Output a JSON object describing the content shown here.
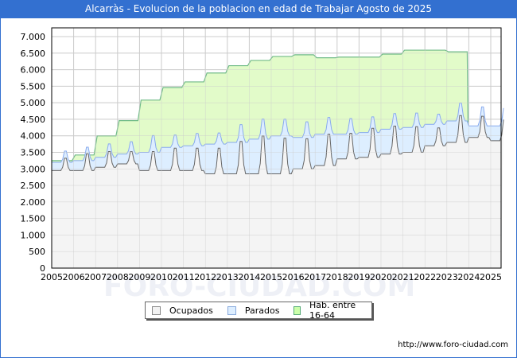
{
  "header": {
    "title": "Alcarràs - Evolucion de la poblacion en edad de Trabajar Agosto de 2025"
  },
  "footer": {
    "url": "http://www.foro-ciudad.com"
  },
  "watermark": "FORO-CIUDAD.COM",
  "legend": {
    "items": [
      {
        "label": "Ocupados",
        "color": "#f2f2f2",
        "border": "#888888"
      },
      {
        "label": "Parados",
        "color": "#ddeeff",
        "border": "#88aadd"
      },
      {
        "label": "Hab. entre 16-64",
        "color": "#ccffaa",
        "border": "#55aa77"
      }
    ]
  },
  "colors": {
    "title_bg": "#3370d0",
    "hab_fill": "#e2fbc9",
    "hab_line": "#70bb88",
    "parados_fill": "#ddeeff",
    "parados_line": "#88aaee",
    "ocupados_fill": "#f4f4f4",
    "ocupados_line": "#666666",
    "grid": "#cccccc"
  },
  "chart_data": {
    "type": "area",
    "title": "Alcarràs - Evolucion de la poblacion en edad de Trabajar Agosto de 2025",
    "xlabel": "",
    "ylabel": "",
    "ylim": [
      0,
      7000
    ],
    "yticks": [
      "0",
      "500",
      "1.000",
      "1.500",
      "2.000",
      "2.500",
      "3.000",
      "3.500",
      "4.000",
      "4.500",
      "5.000",
      "5.500",
      "6.000",
      "6.500",
      "7.000"
    ],
    "xticks": [
      "2005",
      "2006",
      "2007",
      "2008",
      "2009",
      "2010",
      "2011",
      "2012",
      "2013",
      "2014",
      "2015",
      "2016",
      "2017",
      "2018",
      "2019",
      "2020",
      "2021",
      "2022",
      "2023",
      "2024",
      "2025"
    ],
    "grid": true,
    "legend_position": "bottom",
    "series": [
      {
        "name": "Hab. entre 16-64",
        "note": "annual step values (population aged 16-64), per year",
        "x": [
          2005,
          2006,
          2007,
          2008,
          2009,
          2010,
          2011,
          2012,
          2013,
          2014,
          2015,
          2016,
          2017,
          2018,
          2019,
          2020,
          2021,
          2022,
          2023
        ],
        "values": [
          3250,
          3420,
          4000,
          4460,
          5080,
          5460,
          5630,
          5900,
          6120,
          6280,
          6400,
          6450,
          6360,
          6380,
          6380,
          6470,
          6590,
          6590,
          6540
        ]
      },
      {
        "name": "Parados",
        "note": "top of stacked area (Ocupados + Parados), approx. yearly low / peak",
        "x": [
          2005,
          2006,
          2007,
          2008,
          2009,
          2010,
          2011,
          2012,
          2013,
          2014,
          2015,
          2016,
          2017,
          2018,
          2019,
          2020,
          2021,
          2022,
          2023,
          2024,
          2025
        ],
        "low": [
          3200,
          3250,
          3350,
          3450,
          3500,
          3650,
          3700,
          3750,
          3800,
          3900,
          4000,
          3950,
          4050,
          4050,
          4100,
          4200,
          4250,
          4350,
          4450,
          4300,
          4300
        ],
        "peak": [
          3700,
          3850,
          3950,
          4000,
          4250,
          4200,
          4250,
          4250,
          4600,
          4800,
          4750,
          4650,
          4800,
          4750,
          4800,
          4900,
          4900,
          4800,
          5250,
          5150,
          5100
        ]
      },
      {
        "name": "Ocupados",
        "note": "approx. yearly low / peak",
        "x": [
          2005,
          2006,
          2007,
          2008,
          2009,
          2010,
          2011,
          2012,
          2013,
          2014,
          2015,
          2016,
          2017,
          2018,
          2019,
          2020,
          2021,
          2022,
          2023,
          2024,
          2025
        ],
        "low": [
          2950,
          2950,
          3050,
          3150,
          2950,
          2950,
          2950,
          2850,
          2850,
          2850,
          2850,
          3000,
          3100,
          3300,
          3350,
          3450,
          3500,
          3700,
          3800,
          3950,
          3850
        ],
        "peak": [
          3500,
          3700,
          3750,
          3700,
          3800,
          3950,
          3950,
          4000,
          4300,
          4550,
          4450,
          4350,
          4500,
          4450,
          4650,
          4700,
          4650,
          4500,
          5000,
          4900,
          4800
        ]
      }
    ]
  }
}
